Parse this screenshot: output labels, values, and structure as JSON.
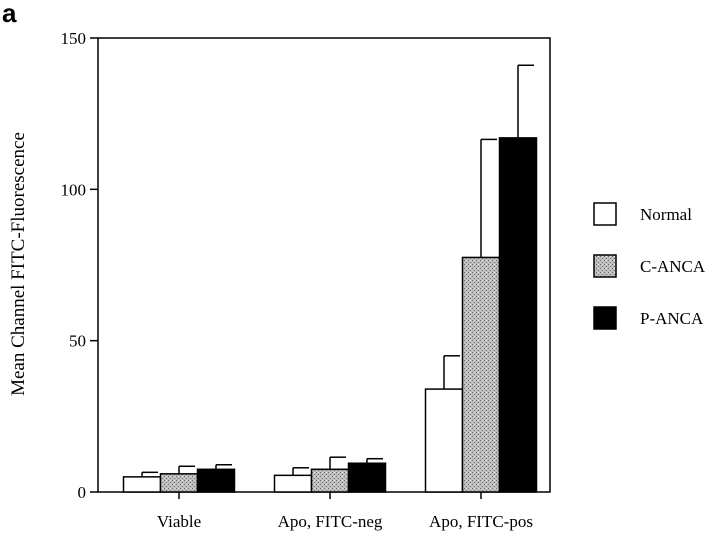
{
  "panel_label": "a",
  "chart_data": {
    "type": "bar",
    "title": "",
    "xlabel": "",
    "ylabel": "Mean Channel FITC-Fluorescence",
    "ylim": [
      0,
      150
    ],
    "yticks": [
      0,
      50,
      100,
      150
    ],
    "categories": [
      "Viable",
      "Apo, FITC-neg",
      "Apo, FITC-pos"
    ],
    "series": [
      {
        "name": "Normal",
        "values": [
          5,
          5.5,
          34
        ],
        "errors": [
          1.5,
          2.5,
          11
        ],
        "fill": "#ffffff",
        "pattern": "none"
      },
      {
        "name": "C-ANCA",
        "values": [
          6,
          7.5,
          77.5
        ],
        "errors": [
          2.5,
          4,
          39
        ],
        "fill": "#b5b5b5",
        "pattern": "stipple"
      },
      {
        "name": "P-ANCA",
        "values": [
          7.5,
          9.5,
          117
        ],
        "errors": [
          1.5,
          1.5,
          24
        ],
        "fill": "#000000",
        "pattern": "none"
      }
    ],
    "grid": false,
    "legend_position": "right"
  }
}
